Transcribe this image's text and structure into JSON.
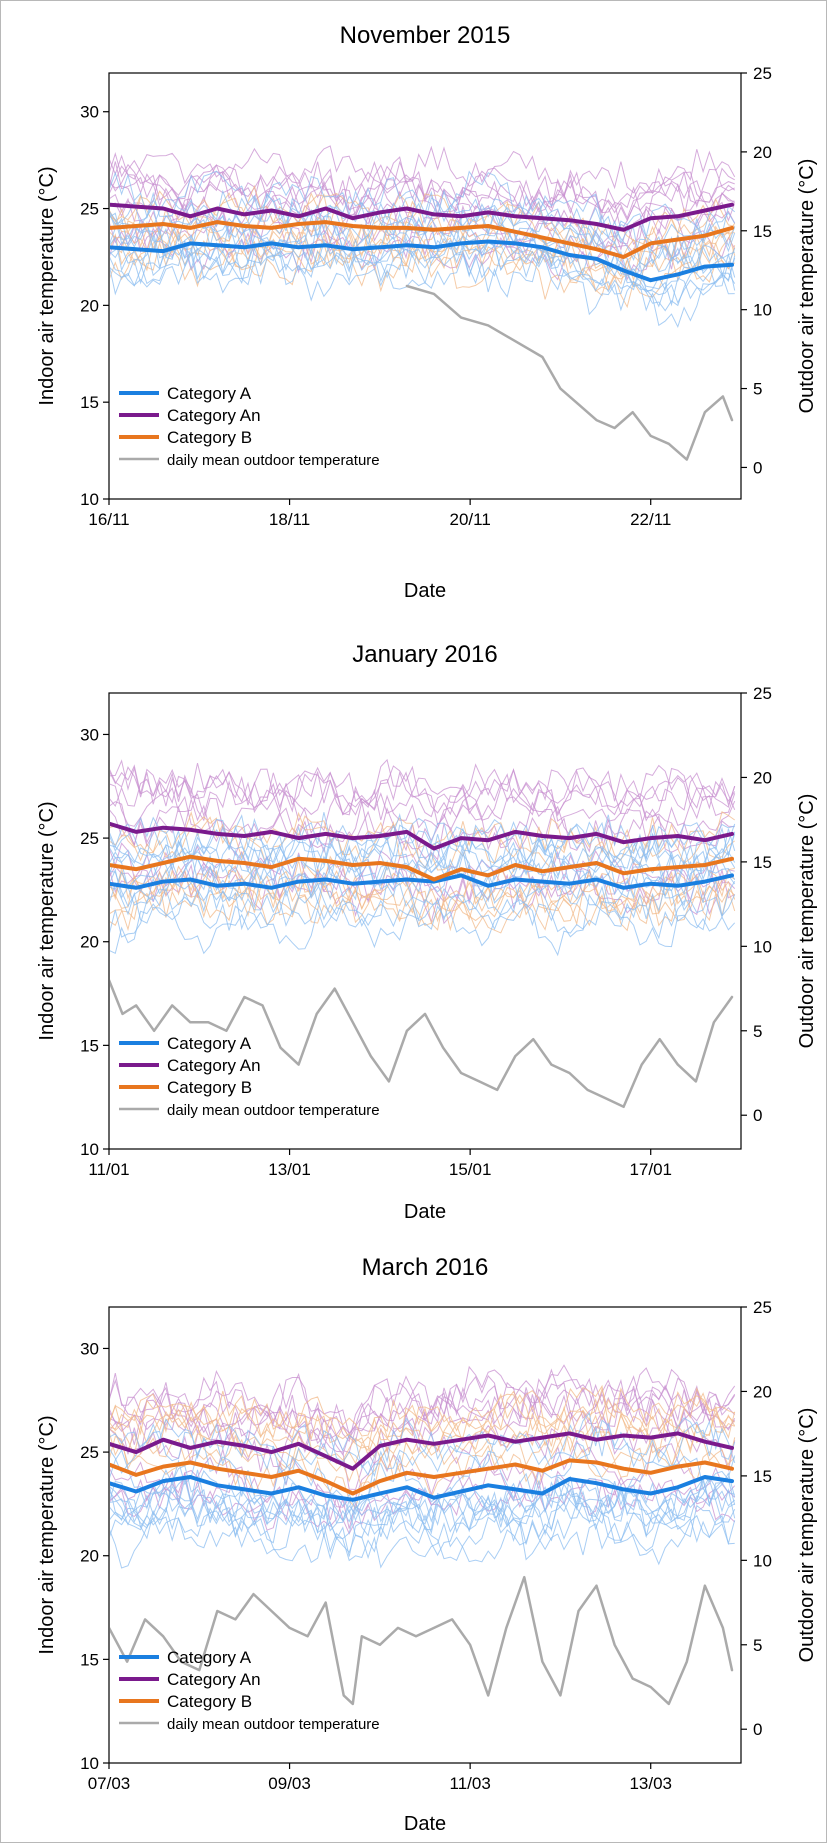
{
  "colors": {
    "category_a": "#1a7fe0",
    "category_an": "#7a1a8c",
    "category_b": "#e8761e",
    "outdoor": "#aaaaaa",
    "thin_a": "#8cbef0",
    "thin_an": "#c890d0",
    "thin_b": "#f2b98a"
  },
  "chart_data": [
    {
      "type": "line",
      "title": "November 2015",
      "xlabel": "Date",
      "ylabel_left": "Indoor air temperature (°C)",
      "ylabel_right": "Outdoor air temperature (°C)",
      "x_ticks": [
        "16/11",
        "18/11",
        "20/11",
        "22/11"
      ],
      "x_tick_days": [
        0,
        2,
        4,
        6
      ],
      "x_range_days": [
        0,
        7
      ],
      "ylim_left": [
        10,
        32
      ],
      "yticks_left": [
        10,
        15,
        20,
        25,
        30
      ],
      "ylim_right": [
        -2,
        25
      ],
      "yticks_right": [
        0,
        5,
        10,
        15,
        20,
        25
      ],
      "legend": [
        "Category A",
        "Category An",
        "Category B",
        "daily mean outdoor temperature"
      ],
      "legend_position": "bottom-left",
      "series": [
        {
          "name": "Category A",
          "axis": "left",
          "color": "category_a",
          "x": [
            0,
            0.3,
            0.6,
            0.9,
            1.2,
            1.5,
            1.8,
            2.1,
            2.4,
            2.7,
            3.0,
            3.3,
            3.6,
            3.9,
            4.2,
            4.5,
            4.8,
            5.1,
            5.4,
            5.7,
            6.0,
            6.3,
            6.6,
            6.9
          ],
          "y": [
            23.0,
            22.9,
            22.8,
            23.2,
            23.1,
            23.0,
            23.2,
            23.0,
            23.1,
            22.9,
            23.0,
            23.1,
            23.0,
            23.2,
            23.3,
            23.2,
            23.0,
            22.6,
            22.4,
            21.8,
            21.3,
            21.6,
            22.0,
            22.1
          ]
        },
        {
          "name": "Category An",
          "axis": "left",
          "color": "category_an",
          "x": [
            0,
            0.3,
            0.6,
            0.9,
            1.2,
            1.5,
            1.8,
            2.1,
            2.4,
            2.7,
            3.0,
            3.3,
            3.6,
            3.9,
            4.2,
            4.5,
            4.8,
            5.1,
            5.4,
            5.7,
            6.0,
            6.3,
            6.6,
            6.9
          ],
          "y": [
            25.2,
            25.1,
            25.0,
            24.6,
            25.0,
            24.7,
            24.9,
            24.6,
            25.0,
            24.5,
            24.8,
            25.0,
            24.7,
            24.6,
            24.8,
            24.6,
            24.5,
            24.4,
            24.2,
            23.9,
            24.5,
            24.6,
            24.9,
            25.2
          ]
        },
        {
          "name": "Category B",
          "axis": "left",
          "color": "category_b",
          "x": [
            0,
            0.3,
            0.6,
            0.9,
            1.2,
            1.5,
            1.8,
            2.1,
            2.4,
            2.7,
            3.0,
            3.3,
            3.6,
            3.9,
            4.2,
            4.5,
            4.8,
            5.1,
            5.4,
            5.7,
            6.0,
            6.3,
            6.6,
            6.9
          ],
          "y": [
            24.0,
            24.1,
            24.2,
            24.0,
            24.3,
            24.1,
            24.0,
            24.2,
            24.3,
            24.1,
            24.0,
            24.0,
            23.9,
            24.0,
            24.1,
            23.8,
            23.5,
            23.2,
            22.9,
            22.5,
            23.2,
            23.4,
            23.6,
            24.0
          ]
        },
        {
          "name": "daily mean outdoor temperature",
          "axis": "right",
          "color": "outdoor",
          "x": [
            3.3,
            3.6,
            3.9,
            4.2,
            4.5,
            4.8,
            5.0,
            5.2,
            5.4,
            5.6,
            5.8,
            6.0,
            6.2,
            6.4,
            6.6,
            6.8,
            6.9
          ],
          "y": [
            11.5,
            11.0,
            9.5,
            9.0,
            8.0,
            7.0,
            5.0,
            4.0,
            3.0,
            2.5,
            3.5,
            2.0,
            1.5,
            0.5,
            3.5,
            4.5,
            3.0
          ]
        }
      ]
    },
    {
      "type": "line",
      "title": "January 2016",
      "xlabel": "Date",
      "ylabel_left": "Indoor air temperature (°C)",
      "ylabel_right": "Outdoor air temperature (°C)",
      "x_ticks": [
        "11/01",
        "13/01",
        "15/01",
        "17/01"
      ],
      "x_tick_days": [
        0,
        2,
        4,
        6
      ],
      "x_range_days": [
        0,
        7
      ],
      "ylim_left": [
        10,
        32
      ],
      "yticks_left": [
        10,
        15,
        20,
        25,
        30
      ],
      "ylim_right": [
        -2,
        25
      ],
      "yticks_right": [
        0,
        5,
        10,
        15,
        20,
        25
      ],
      "legend": [
        "Category A",
        "Category An",
        "Category B",
        "daily mean outdoor temperature"
      ],
      "legend_position": "bottom-left",
      "series": [
        {
          "name": "Category A",
          "axis": "left",
          "color": "category_a",
          "x": [
            0,
            0.3,
            0.6,
            0.9,
            1.2,
            1.5,
            1.8,
            2.1,
            2.4,
            2.7,
            3.0,
            3.3,
            3.6,
            3.9,
            4.2,
            4.5,
            4.8,
            5.1,
            5.4,
            5.7,
            6.0,
            6.3,
            6.6,
            6.9
          ],
          "y": [
            22.8,
            22.6,
            22.9,
            23.0,
            22.7,
            22.8,
            22.6,
            22.9,
            23.0,
            22.8,
            22.9,
            23.0,
            22.9,
            23.2,
            22.7,
            23.0,
            22.9,
            22.8,
            23.0,
            22.6,
            22.8,
            22.7,
            22.9,
            23.2
          ]
        },
        {
          "name": "Category An",
          "axis": "left",
          "color": "category_an",
          "x": [
            0,
            0.3,
            0.6,
            0.9,
            1.2,
            1.5,
            1.8,
            2.1,
            2.4,
            2.7,
            3.0,
            3.3,
            3.6,
            3.9,
            4.2,
            4.5,
            4.8,
            5.1,
            5.4,
            5.7,
            6.0,
            6.3,
            6.6,
            6.9
          ],
          "y": [
            25.7,
            25.3,
            25.5,
            25.4,
            25.2,
            25.1,
            25.3,
            25.0,
            25.2,
            25.0,
            25.1,
            25.3,
            24.5,
            25.0,
            24.9,
            25.3,
            25.1,
            25.0,
            25.2,
            24.8,
            25.0,
            25.1,
            24.9,
            25.2
          ]
        },
        {
          "name": "Category B",
          "axis": "left",
          "color": "category_b",
          "x": [
            0,
            0.3,
            0.6,
            0.9,
            1.2,
            1.5,
            1.8,
            2.1,
            2.4,
            2.7,
            3.0,
            3.3,
            3.6,
            3.9,
            4.2,
            4.5,
            4.8,
            5.1,
            5.4,
            5.7,
            6.0,
            6.3,
            6.6,
            6.9
          ],
          "y": [
            23.7,
            23.5,
            23.8,
            24.1,
            23.9,
            23.8,
            23.6,
            24.0,
            23.9,
            23.7,
            23.8,
            23.6,
            23.0,
            23.5,
            23.2,
            23.7,
            23.4,
            23.6,
            23.8,
            23.3,
            23.5,
            23.6,
            23.7,
            24.0
          ]
        },
        {
          "name": "daily mean outdoor temperature",
          "axis": "right",
          "color": "outdoor",
          "x": [
            0,
            0.15,
            0.3,
            0.5,
            0.7,
            0.9,
            1.1,
            1.3,
            1.5,
            1.7,
            1.9,
            2.1,
            2.3,
            2.5,
            2.7,
            2.9,
            3.1,
            3.3,
            3.5,
            3.7,
            3.9,
            4.1,
            4.3,
            4.5,
            4.7,
            4.9,
            5.1,
            5.3,
            5.5,
            5.7,
            5.9,
            6.1,
            6.3,
            6.5,
            6.7,
            6.9
          ],
          "y": [
            8.0,
            6.0,
            6.5,
            5.0,
            6.5,
            5.5,
            5.5,
            5.0,
            7.0,
            6.5,
            4.0,
            3.0,
            6.0,
            7.5,
            5.5,
            3.5,
            2.0,
            5.0,
            6.0,
            4.0,
            2.5,
            2.0,
            1.5,
            3.5,
            4.5,
            3.0,
            2.5,
            1.5,
            1.0,
            0.5,
            3.0,
            4.5,
            3.0,
            2.0,
            5.5,
            7.0
          ]
        }
      ]
    },
    {
      "type": "line",
      "title": "March 2016",
      "xlabel": "Date",
      "ylabel_left": "Indoor air temperature (°C)",
      "ylabel_right": "Outdoor air temperature (°C)",
      "x_ticks": [
        "07/03",
        "09/03",
        "11/03",
        "13/03"
      ],
      "x_tick_days": [
        0,
        2,
        4,
        6
      ],
      "x_range_days": [
        0,
        7
      ],
      "ylim_left": [
        10,
        32
      ],
      "yticks_left": [
        10,
        15,
        20,
        25,
        30
      ],
      "ylim_right": [
        -2,
        25
      ],
      "yticks_right": [
        0,
        5,
        10,
        15,
        20,
        25
      ],
      "legend": [
        "Category A",
        "Category An",
        "Category B",
        "daily mean outdoor temperature"
      ],
      "legend_position": "bottom-left",
      "series": [
        {
          "name": "Category A",
          "axis": "left",
          "color": "category_a",
          "x": [
            0,
            0.3,
            0.6,
            0.9,
            1.2,
            1.5,
            1.8,
            2.1,
            2.4,
            2.7,
            3.0,
            3.3,
            3.6,
            3.9,
            4.2,
            4.5,
            4.8,
            5.1,
            5.4,
            5.7,
            6.0,
            6.3,
            6.6,
            6.9
          ],
          "y": [
            23.5,
            23.1,
            23.6,
            23.8,
            23.4,
            23.2,
            23.0,
            23.3,
            22.9,
            22.7,
            23.0,
            23.3,
            22.8,
            23.1,
            23.4,
            23.2,
            23.0,
            23.7,
            23.5,
            23.2,
            23.0,
            23.3,
            23.8,
            23.6
          ]
        },
        {
          "name": "Category An",
          "axis": "left",
          "color": "category_an",
          "x": [
            0,
            0.3,
            0.6,
            0.9,
            1.2,
            1.5,
            1.8,
            2.1,
            2.4,
            2.7,
            3.0,
            3.3,
            3.6,
            3.9,
            4.2,
            4.5,
            4.8,
            5.1,
            5.4,
            5.7,
            6.0,
            6.3,
            6.6,
            6.9
          ],
          "y": [
            25.4,
            25.0,
            25.6,
            25.2,
            25.5,
            25.3,
            25.0,
            25.4,
            24.8,
            24.2,
            25.3,
            25.6,
            25.4,
            25.6,
            25.8,
            25.5,
            25.7,
            25.9,
            25.6,
            25.8,
            25.7,
            25.9,
            25.5,
            25.2
          ]
        },
        {
          "name": "Category B",
          "axis": "left",
          "color": "category_b",
          "x": [
            0,
            0.3,
            0.6,
            0.9,
            1.2,
            1.5,
            1.8,
            2.1,
            2.4,
            2.7,
            3.0,
            3.3,
            3.6,
            3.9,
            4.2,
            4.5,
            4.8,
            5.1,
            5.4,
            5.7,
            6.0,
            6.3,
            6.6,
            6.9
          ],
          "y": [
            24.4,
            23.9,
            24.3,
            24.5,
            24.2,
            24.0,
            23.8,
            24.1,
            23.6,
            23.0,
            23.6,
            24.0,
            23.8,
            24.0,
            24.2,
            24.4,
            24.1,
            24.6,
            24.5,
            24.2,
            24.0,
            24.3,
            24.5,
            24.2
          ]
        },
        {
          "name": "daily mean outdoor temperature",
          "axis": "right",
          "color": "outdoor",
          "x": [
            0,
            0.2,
            0.4,
            0.6,
            0.8,
            1.0,
            1.2,
            1.4,
            1.6,
            1.8,
            2.0,
            2.2,
            2.4,
            2.6,
            2.7,
            2.8,
            3.0,
            3.2,
            3.4,
            3.6,
            3.8,
            4.0,
            4.2,
            4.4,
            4.6,
            4.8,
            5.0,
            5.2,
            5.4,
            5.6,
            5.8,
            6.0,
            6.2,
            6.4,
            6.6,
            6.8,
            6.9
          ],
          "y": [
            6.0,
            4.0,
            6.5,
            5.5,
            4.0,
            3.5,
            7.0,
            6.5,
            8.0,
            7.0,
            6.0,
            5.5,
            7.5,
            2.0,
            1.5,
            5.5,
            5.0,
            6.0,
            5.5,
            6.0,
            6.5,
            5.0,
            2.0,
            6.0,
            9.0,
            4.0,
            2.0,
            7.0,
            8.5,
            5.0,
            3.0,
            2.5,
            1.5,
            4.0,
            8.5,
            6.0,
            3.5
          ]
        }
      ]
    }
  ]
}
